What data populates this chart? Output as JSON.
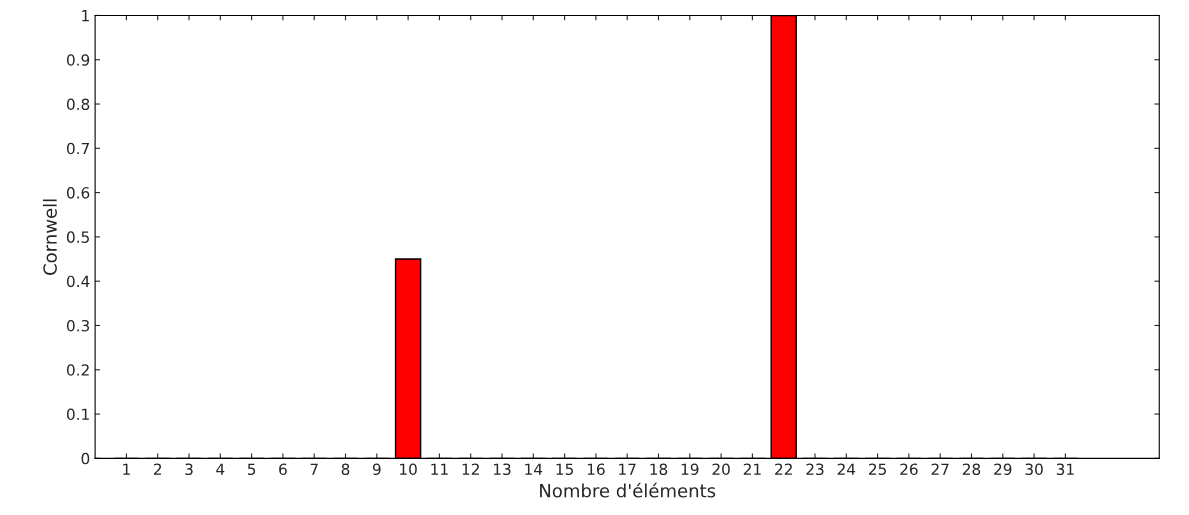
{
  "chart_data": {
    "type": "bar",
    "xlabel": "Nombre d'éléments",
    "ylabel": "Cornwell",
    "x": [
      1,
      2,
      3,
      4,
      5,
      6,
      7,
      8,
      9,
      10,
      11,
      12,
      13,
      14,
      15,
      16,
      17,
      18,
      19,
      20,
      21,
      22,
      23,
      24,
      25,
      26,
      27,
      28,
      29,
      30,
      31
    ],
    "values": [
      0,
      0,
      0,
      0,
      0,
      0,
      0,
      0,
      0,
      0.45,
      0,
      0,
      0,
      0,
      0,
      0,
      0,
      0,
      0,
      0,
      0,
      1,
      0,
      0,
      0,
      0,
      0,
      0,
      0,
      0,
      0
    ],
    "color": "#ff0000",
    "xlim": [
      0,
      34
    ],
    "xticks": [
      1,
      2,
      3,
      4,
      5,
      6,
      7,
      8,
      9,
      10,
      11,
      12,
      13,
      14,
      15,
      16,
      17,
      18,
      19,
      20,
      21,
      22,
      23,
      24,
      25,
      26,
      27,
      28,
      29,
      30,
      31
    ],
    "ylim": [
      0,
      1
    ],
    "yticks": [
      0,
      0.1,
      0.2,
      0.3,
      0.4,
      0.5,
      0.6,
      0.7,
      0.8,
      0.9,
      1
    ],
    "grid": false
  }
}
